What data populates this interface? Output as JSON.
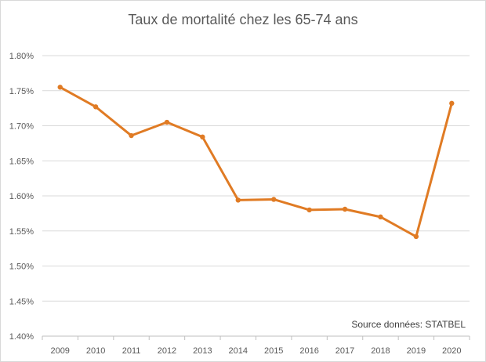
{
  "chart_data": {
    "type": "line",
    "title": "Taux de mortalité chez les 65-74 ans",
    "xlabel": "",
    "ylabel": "",
    "categories": [
      "2009",
      "2010",
      "2011",
      "2012",
      "2013",
      "2014",
      "2015",
      "2016",
      "2017",
      "2018",
      "2019",
      "2020"
    ],
    "series": [
      {
        "values": [
          1.755,
          1.727,
          1.686,
          1.705,
          1.684,
          1.594,
          1.595,
          1.58,
          1.581,
          1.57,
          1.542,
          1.732
        ],
        "color": "#e07b24"
      }
    ],
    "ylim": [
      1.4,
      1.8
    ],
    "yticks": [
      1.4,
      1.45,
      1.5,
      1.55,
      1.6,
      1.65,
      1.7,
      1.75,
      1.8
    ],
    "ytick_labels": [
      "1.40%",
      "1.45%",
      "1.50%",
      "1.55%",
      "1.60%",
      "1.65%",
      "1.70%",
      "1.75%",
      "1.80%"
    ],
    "grid": true,
    "source_note": "Source données: STATBEL",
    "colors": {
      "line": "#e07b24",
      "grid": "#d9d9d9",
      "text": "#595959"
    }
  }
}
